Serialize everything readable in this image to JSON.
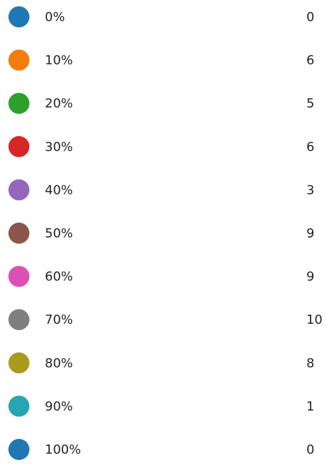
{
  "items": [
    {
      "label": "0%",
      "count": 0,
      "color": "#1f77b4"
    },
    {
      "label": "10%",
      "count": 6,
      "color": "#f27c0e"
    },
    {
      "label": "20%",
      "count": 5,
      "color": "#2ca02c"
    },
    {
      "label": "30%",
      "count": 6,
      "color": "#d62728"
    },
    {
      "label": "40%",
      "count": 3,
      "color": "#9467bd"
    },
    {
      "label": "50%",
      "count": 9,
      "color": "#8c564b"
    },
    {
      "label": "60%",
      "count": 9,
      "color": "#dc4fb4"
    },
    {
      "label": "70%",
      "count": 10,
      "color": "#7f7f7f"
    },
    {
      "label": "80%",
      "count": 8,
      "color": "#a99b1c"
    },
    {
      "label": "90%",
      "count": 1,
      "color": "#28a5b2"
    },
    {
      "label": "100%",
      "count": 0,
      "color": "#1f77b4"
    }
  ]
}
